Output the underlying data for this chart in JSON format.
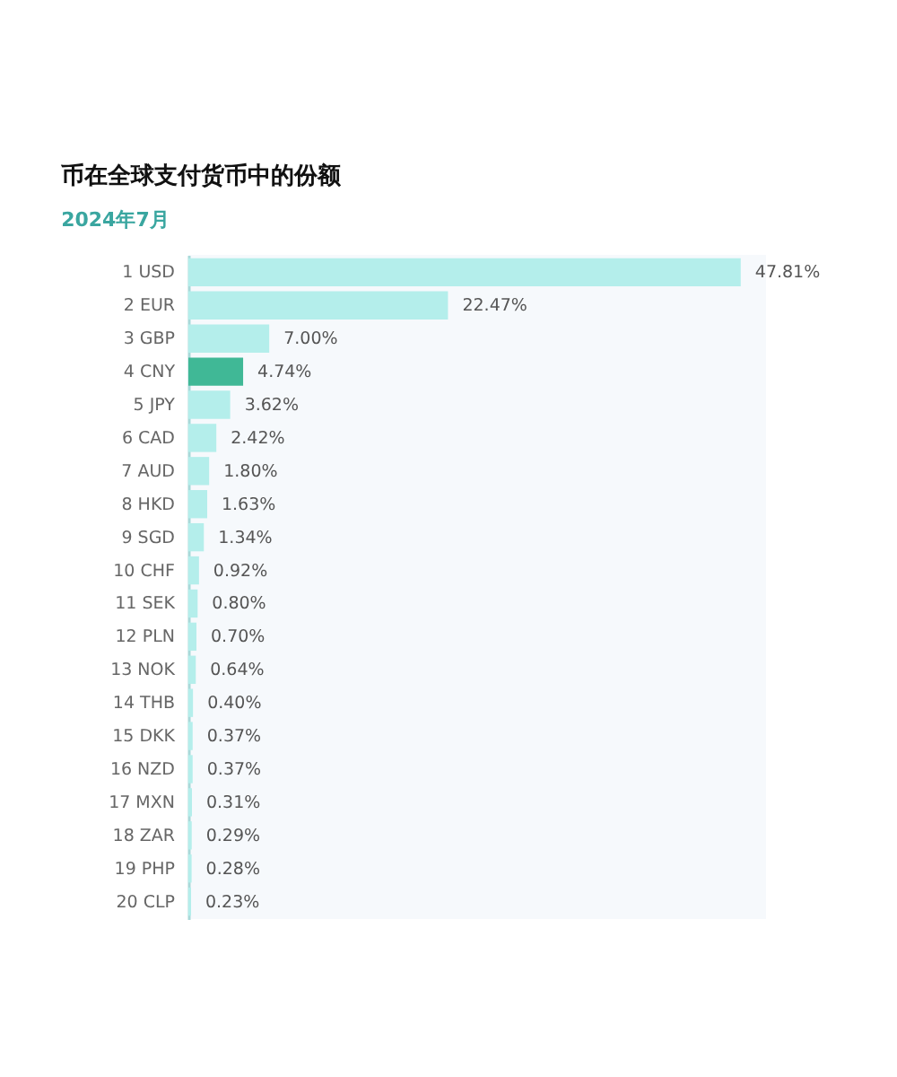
{
  "chart_data": {
    "type": "bar",
    "orientation": "horizontal",
    "title": "币在全球支付货币中的份额",
    "subtitle": "2024年7月",
    "categories": [
      "1 USD",
      "2 EUR",
      "3 GBP",
      "4 CNY",
      "5 JPY",
      "6 CAD",
      "7 AUD",
      "8 HKD",
      "9 SGD",
      "10 CHF",
      "11 SEK",
      "12 PLN",
      "13 NOK",
      "14 THB",
      "15 DKK",
      "16 NZD",
      "17 MXN",
      "18 ZAR",
      "19 PHP",
      "20 CLP"
    ],
    "values": [
      47.81,
      22.47,
      7.0,
      4.74,
      3.62,
      2.42,
      1.8,
      1.63,
      1.34,
      0.92,
      0.8,
      0.7,
      0.64,
      0.4,
      0.37,
      0.37,
      0.31,
      0.29,
      0.28,
      0.23
    ],
    "colors": [
      "#b4eeeb",
      "#b4eeeb",
      "#b4eeeb",
      "#40b896",
      "#b4eeeb",
      "#b4eeeb",
      "#b4eeeb",
      "#b4eeeb",
      "#b4eeeb",
      "#b4eeeb",
      "#b4eeeb",
      "#b4eeeb",
      "#b4eeeb",
      "#b4eeeb",
      "#b4eeeb",
      "#b4eeeb",
      "#b4eeeb",
      "#b4eeeb",
      "#b4eeeb",
      "#b4eeeb"
    ],
    "value_labels": [
      "47.81%",
      "22.47%",
      "7.00%",
      "4.74%",
      "3.62%",
      "2.42%",
      "1.80%",
      "1.63%",
      "1.34%",
      "0.92%",
      "0.80%",
      "0.70%",
      "0.64%",
      "0.40%",
      "0.37%",
      "0.37%",
      "0.31%",
      "0.29%",
      "0.28%",
      "0.23%"
    ],
    "tick_labels": "y",
    "grid": false
  }
}
